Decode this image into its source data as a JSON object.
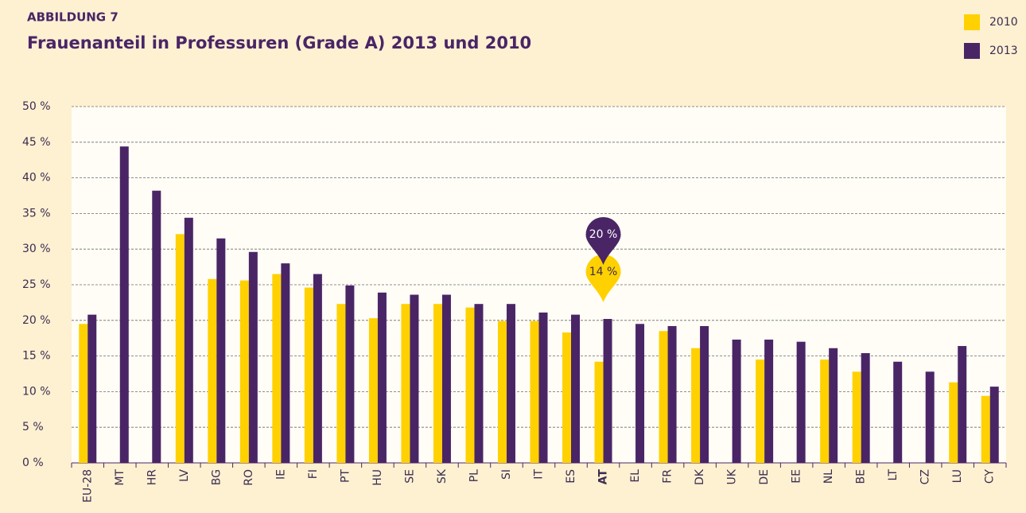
{
  "chart_data": {
    "type": "bar",
    "kicker": "ABBILDUNG 7",
    "title": "Frauenanteil in Professuren (Grade A) 2013 und 2010",
    "categories": [
      "EU-28",
      "MT",
      "HR",
      "LV",
      "BG",
      "RO",
      "IE",
      "FI",
      "PT",
      "HU",
      "SE",
      "SK",
      "PL",
      "SI",
      "IT",
      "ES",
      "AT",
      "EL",
      "FR",
      "DK",
      "UK",
      "DE",
      "EE",
      "NL",
      "BE",
      "LT",
      "CZ",
      "LU",
      "CY"
    ],
    "highlight": "AT",
    "series": [
      {
        "name": "2010",
        "color": "#ffd100",
        "values": [
          19.5,
          null,
          null,
          32.1,
          25.8,
          25.6,
          26.5,
          24.6,
          22.3,
          20.3,
          22.3,
          22.3,
          21.8,
          19.9,
          19.9,
          18.3,
          14.2,
          null,
          18.5,
          16.1,
          null,
          14.5,
          null,
          14.5,
          12.8,
          null,
          null,
          11.3,
          9.4
        ],
        "value_labels": [
          null,
          null,
          null,
          null,
          null,
          null,
          null,
          null,
          null,
          null,
          null,
          null,
          null,
          null,
          null,
          null,
          "14 %",
          null,
          null,
          null,
          null,
          null,
          null,
          null,
          null,
          null,
          null,
          null,
          null
        ]
      },
      {
        "name": "2013",
        "color": "#4a2566",
        "values": [
          20.8,
          44.4,
          38.2,
          34.4,
          31.5,
          29.6,
          28.0,
          26.5,
          24.9,
          23.9,
          23.6,
          23.6,
          22.3,
          22.3,
          21.1,
          20.8,
          20.2,
          19.5,
          19.2,
          19.2,
          17.3,
          17.3,
          17.0,
          16.1,
          15.4,
          14.2,
          12.8,
          16.4,
          10.7
        ],
        "value_labels": [
          null,
          null,
          null,
          null,
          null,
          null,
          null,
          null,
          null,
          null,
          null,
          null,
          null,
          null,
          null,
          null,
          "20 %",
          null,
          null,
          null,
          null,
          null,
          null,
          null,
          null,
          null,
          null,
          null,
          null
        ]
      }
    ],
    "ylim": [
      0,
      50
    ],
    "yticks": [
      {
        "value": 0,
        "label": "0 %"
      },
      {
        "value": 5,
        "label": "5 %"
      },
      {
        "value": 10,
        "label": "10 %"
      },
      {
        "value": 15,
        "label": "15 %"
      },
      {
        "value": 20,
        "label": "20 %"
      },
      {
        "value": 25,
        "label": "25 %"
      },
      {
        "value": 30,
        "label": "30 %"
      },
      {
        "value": 35,
        "label": "35 %"
      },
      {
        "value": 40,
        "label": "40 %"
      },
      {
        "value": 45,
        "label": "45 %"
      },
      {
        "value": 50,
        "label": "50 %"
      }
    ],
    "grid": true,
    "legend": "top-right"
  }
}
